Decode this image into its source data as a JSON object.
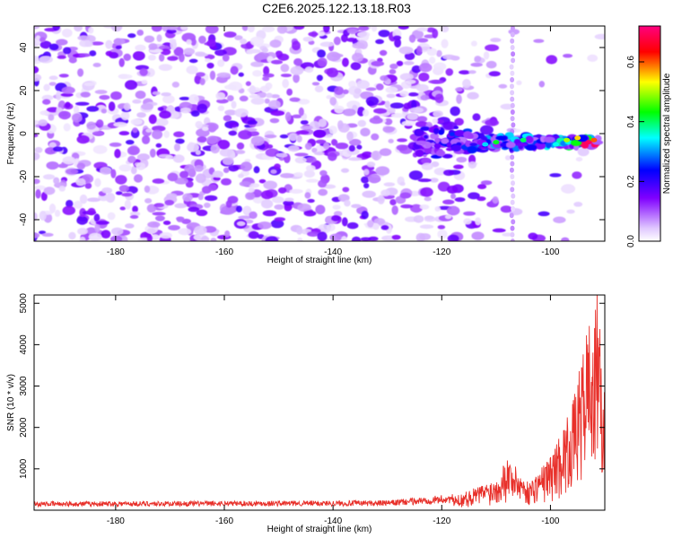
{
  "title": "C2E6.2025.122.13.18.R03",
  "chart_data": [
    {
      "type": "heatmap",
      "xlabel": "Height of straight line (km)",
      "ylabel": "Frequency (Hz)",
      "xlim": [
        -195,
        -90
      ],
      "ylim": [
        -50,
        50
      ],
      "x_ticks": [
        -180,
        -160,
        -140,
        -120,
        -100
      ],
      "y_ticks": [
        -40,
        -20,
        0,
        20,
        40
      ],
      "x_tick_labels": [
        "-180",
        "-160",
        "-140",
        "-120",
        "-100"
      ],
      "y_tick_labels": [
        "-40",
        "-20",
        "0",
        "20",
        "40"
      ],
      "colorbar": {
        "label": "Normalized spectral amplitude",
        "range": [
          0.0,
          0.72
        ],
        "ticks": [
          0.0,
          0.2,
          0.4,
          0.6
        ],
        "tick_labels": [
          "0.0",
          "0.2",
          "0.4",
          "0.6"
        ],
        "colormap": [
          "#ffffff",
          "#8000ff",
          "#0000ff",
          "#00ffff",
          "#00ff00",
          "#ffff00",
          "#ff0000",
          "#ff0080"
        ]
      },
      "signal_track": {
        "frequency_hz": -4,
        "start_km": -125,
        "end_km": -91,
        "peak_amplitude": 0.7,
        "peak_km": -93
      },
      "vertical_artifact_km": -107
    },
    {
      "type": "line",
      "xlabel": "Height of straight line (km)",
      "ylabel": "SNR (10 * v/v)",
      "xlim": [
        -195,
        -90
      ],
      "ylim": [
        0,
        5200
      ],
      "x_ticks": [
        -180,
        -160,
        -140,
        -120,
        -100
      ],
      "y_ticks": [
        1000,
        2000,
        3000,
        4000,
        5000
      ],
      "x_tick_labels": [
        "-180",
        "-160",
        "-140",
        "-120",
        "-100"
      ],
      "y_tick_labels": [
        "1000",
        "2000",
        "3000",
        "4000",
        "5000"
      ],
      "color": "#e8302a",
      "baseline_snr": 150,
      "key_points": [
        {
          "x": -195,
          "y": 150
        },
        {
          "x": -130,
          "y": 170
        },
        {
          "x": -118,
          "y": 280
        },
        {
          "x": -110,
          "y": 700
        },
        {
          "x": -108,
          "y": 1200
        },
        {
          "x": -104,
          "y": 600
        },
        {
          "x": -100,
          "y": 1200
        },
        {
          "x": -96,
          "y": 2300
        },
        {
          "x": -94,
          "y": 3500
        },
        {
          "x": -93,
          "y": 4400
        },
        {
          "x": -92,
          "y": 3600
        },
        {
          "x": -91.5,
          "y": 5200
        },
        {
          "x": -91,
          "y": 4200
        },
        {
          "x": -90,
          "y": 2500
        }
      ]
    }
  ]
}
